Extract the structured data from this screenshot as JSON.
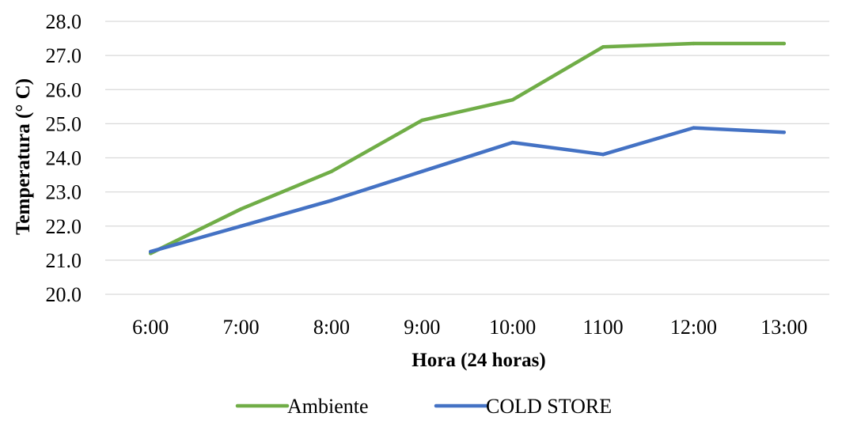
{
  "chart_data": {
    "type": "line",
    "title": "",
    "xlabel": "Hora (24 horas)",
    "ylabel": "Temperatura (° C)",
    "categories": [
      "6:00",
      "7:00",
      "8:00",
      "9:00",
      "10:00",
      "1100",
      "12:00",
      "13:00"
    ],
    "ylim": [
      20.0,
      28.0
    ],
    "yticks": [
      "20.0",
      "21.0",
      "22.0",
      "23.0",
      "24.0",
      "25.0",
      "26.0",
      "27.0",
      "28.0"
    ],
    "grid": true,
    "legend_position": "bottom",
    "series": [
      {
        "name": "Ambiente",
        "color": "#70AD47",
        "values": [
          21.2,
          22.5,
          23.6,
          25.1,
          25.7,
          27.25,
          27.35,
          27.35
        ]
      },
      {
        "name": "COLD STORE",
        "color": "#4472C4",
        "values": [
          21.25,
          22.0,
          22.75,
          23.6,
          24.45,
          24.1,
          24.88,
          24.75
        ]
      }
    ]
  }
}
